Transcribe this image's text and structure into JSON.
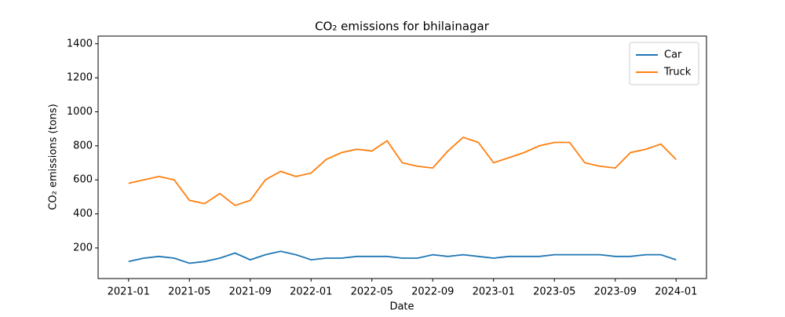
{
  "chart_data": {
    "type": "line",
    "title": "CO₂ emissions for bhilainagar",
    "xlabel": "Date",
    "ylabel": "CO₂ emissions (tons)",
    "x": [
      "2021-01",
      "2021-02",
      "2021-03",
      "2021-04",
      "2021-05",
      "2021-06",
      "2021-07",
      "2021-08",
      "2021-09",
      "2021-10",
      "2021-11",
      "2021-12",
      "2022-01",
      "2022-02",
      "2022-03",
      "2022-04",
      "2022-05",
      "2022-06",
      "2022-07",
      "2022-08",
      "2022-09",
      "2022-10",
      "2022-11",
      "2022-12",
      "2023-01",
      "2023-02",
      "2023-03",
      "2023-04",
      "2023-05",
      "2023-06",
      "2023-07",
      "2023-08",
      "2023-09",
      "2023-10",
      "2023-11",
      "2023-12",
      "2024-01"
    ],
    "series": [
      {
        "name": "Car",
        "color": "#1f77b4",
        "values": [
          120,
          140,
          150,
          140,
          110,
          120,
          140,
          170,
          130,
          160,
          180,
          160,
          130,
          140,
          140,
          150,
          150,
          150,
          140,
          140,
          160,
          150,
          160,
          150,
          140,
          150,
          150,
          150,
          160,
          160,
          160,
          160,
          150,
          150,
          160,
          160,
          130
        ]
      },
      {
        "name": "Truck",
        "color": "#ff7f0e",
        "values": [
          580,
          600,
          620,
          600,
          480,
          460,
          520,
          450,
          480,
          600,
          650,
          620,
          640,
          720,
          760,
          780,
          770,
          830,
          700,
          680,
          670,
          770,
          850,
          820,
          700,
          730,
          760,
          800,
          820,
          820,
          700,
          680,
          670,
          760,
          780,
          810,
          720
        ]
      }
    ],
    "xlim": [
      "2020-11",
      "2024-03"
    ],
    "xticks": [
      "2021-01",
      "2021-05",
      "2021-09",
      "2022-01",
      "2022-05",
      "2022-09",
      "2023-01",
      "2023-05",
      "2023-09",
      "2024-01"
    ],
    "ylim": [
      20,
      1445
    ],
    "yticks": [
      200,
      400,
      600,
      800,
      1000,
      1200,
      1400
    ],
    "legend": "upper right",
    "grid": false
  }
}
